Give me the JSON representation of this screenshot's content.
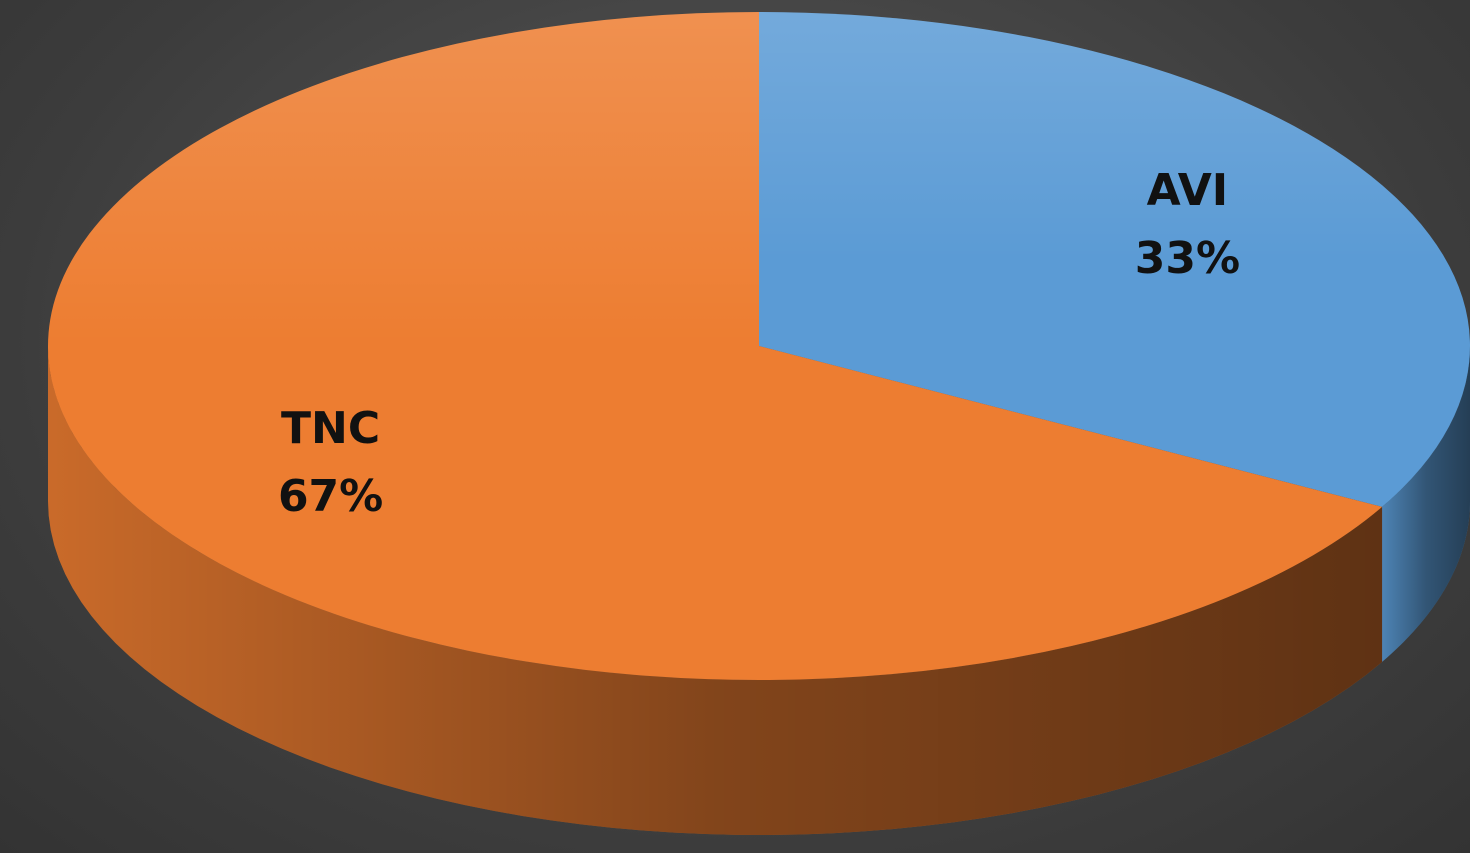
{
  "chart_data": {
    "type": "pie3d",
    "categories": [
      "AVI",
      "TNC"
    ],
    "values": [
      33,
      67
    ],
    "value_labels": [
      "33%",
      "67%"
    ],
    "colors": [
      "#5b9bd5",
      "#ed7d31"
    ]
  }
}
